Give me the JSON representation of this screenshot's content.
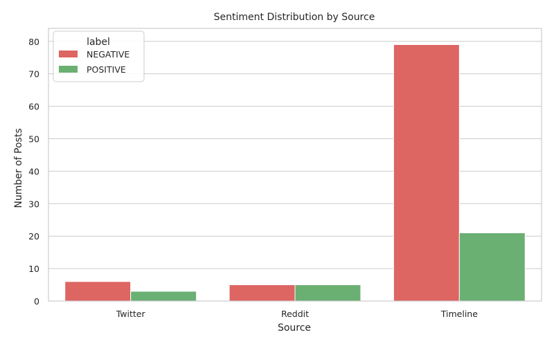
{
  "chart_data": {
    "type": "bar",
    "title": "Sentiment Distribution by Source",
    "xlabel": "Source",
    "ylabel": "Number of Posts",
    "categories": [
      "Twitter",
      "Reddit",
      "Timeline"
    ],
    "series": [
      {
        "name": "NEGATIVE",
        "values": [
          6,
          5,
          79
        ],
        "color": "#dd6562"
      },
      {
        "name": "POSITIVE",
        "values": [
          3,
          5,
          21
        ],
        "color": "#6ab073"
      }
    ],
    "ylim": [
      0,
      84
    ],
    "yticks": [
      0,
      10,
      20,
      30,
      40,
      50,
      60,
      70,
      80
    ],
    "grid": true,
    "legend": {
      "title": "label",
      "position": "top-left"
    }
  }
}
